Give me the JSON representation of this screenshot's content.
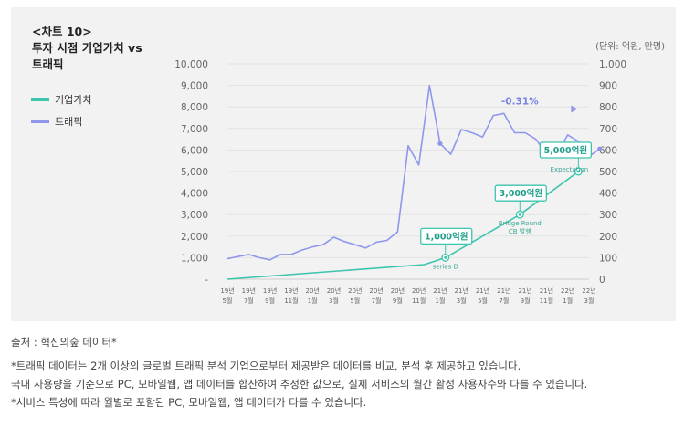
{
  "chart_data": {
    "type": "line",
    "title": [
      "<차트 10>",
      "투자 시점 기업가치 vs",
      "트래픽"
    ],
    "unit": "(단위: 억원, 만명)",
    "x_ticks": [
      [
        "19년",
        "5월"
      ],
      [
        "19년",
        "7월"
      ],
      [
        "19년",
        "9월"
      ],
      [
        "19년",
        "11월"
      ],
      [
        "20년",
        "1월"
      ],
      [
        "20년",
        "3월"
      ],
      [
        "20년",
        "5월"
      ],
      [
        "20년",
        "7월"
      ],
      [
        "20년",
        "9월"
      ],
      [
        "20년",
        "11월"
      ],
      [
        "21년",
        "1월"
      ],
      [
        "21년",
        "3월"
      ],
      [
        "21년",
        "5월"
      ],
      [
        "21년",
        "7월"
      ],
      [
        "21년",
        "9월"
      ],
      [
        "21년",
        "11월"
      ],
      [
        "22년",
        "1월"
      ],
      [
        "22년",
        "3월"
      ]
    ],
    "y_left_ticks": [
      "-",
      "1,000",
      "2,000",
      "3,000",
      "4,000",
      "5,000",
      "6,000",
      "7,000",
      "8,000",
      "9,000",
      "10,000"
    ],
    "y_right_ticks": [
      "0",
      "100",
      "200",
      "300",
      "400",
      "500",
      "600",
      "700",
      "800",
      "900",
      "1,000"
    ],
    "y_left_range": [
      0,
      10000
    ],
    "y_right_range": [
      0,
      1000
    ],
    "x_range": [
      0,
      34
    ],
    "series": [
      {
        "name": "기업가치",
        "axis": "left",
        "color": "#3cc4ad",
        "points": [
          [
            0,
            0
          ],
          [
            18.5,
            680
          ],
          [
            20.5,
            1000
          ],
          [
            27.5,
            3000
          ],
          [
            33,
            5000
          ]
        ]
      },
      {
        "name": "트래픽",
        "axis": "right",
        "color": "#8f97ec",
        "points": [
          [
            0,
            95
          ],
          [
            1,
            105
          ],
          [
            2,
            115
          ],
          [
            3,
            100
          ],
          [
            4,
            90
          ],
          [
            5,
            115
          ],
          [
            6,
            115
          ],
          [
            7,
            135
          ],
          [
            8,
            150
          ],
          [
            9,
            160
          ],
          [
            10,
            195
          ],
          [
            11,
            175
          ],
          [
            12,
            160
          ],
          [
            13,
            145
          ],
          [
            14,
            172
          ],
          [
            15,
            180
          ],
          [
            16,
            220
          ],
          [
            17,
            620
          ],
          [
            18,
            530
          ],
          [
            19,
            900
          ],
          [
            20,
            630
          ],
          [
            21,
            580
          ],
          [
            22,
            695
          ],
          [
            23,
            680
          ],
          [
            24,
            660
          ],
          [
            25,
            760
          ],
          [
            26,
            770
          ],
          [
            27,
            680
          ],
          [
            28,
            680
          ],
          [
            29,
            650
          ],
          [
            30,
            580
          ],
          [
            31,
            585
          ],
          [
            32,
            670
          ],
          [
            33,
            640
          ],
          [
            34,
            570
          ],
          [
            35,
            605
          ]
        ]
      }
    ],
    "annotations": [
      {
        "label": "1,000억원",
        "note": [
          "series D"
        ],
        "x": 20.5,
        "value": 1000
      },
      {
        "label": "3,000억원",
        "note": [
          "Bridge Round",
          "CB 발행"
        ],
        "x": 27.5,
        "value": 3000
      },
      {
        "label": "5,000억원",
        "note": [
          "Expectation"
        ],
        "x": 33,
        "value": 5000
      }
    ],
    "trend_label": "-0.31%"
  },
  "footnotes": {
    "source": "출처 : 혁신의숲 데이터*",
    "lines": [
      "*트래픽 데이터는 2개 이상의 글로벌 트래픽 분석 기업으로부터 제공받은 데이터를 비교, 분석 후 제공하고 있습니다.",
      "국내 사용량을 기준으로 PC, 모바일웹, 앱 데이터를 합산하여 추정한 값으로, 실제 서비스의 월간 활성 사용자수와 다를 수 있습니다.",
      "*서비스 특성에 따라 월별로 포함된 PC, 모바일웹, 앱 데이터가 다를 수 있습니다."
    ]
  }
}
